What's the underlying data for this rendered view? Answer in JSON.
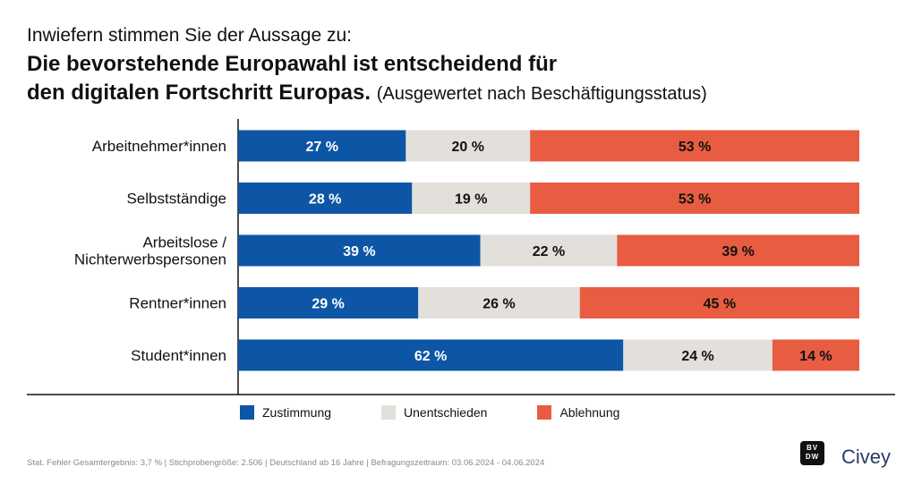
{
  "question": {
    "pre": "Inwiefern stimmen Sie der Aussage zu:",
    "title": "Die bevorstehende Europawahl ist entscheidend für den digitalen Fortschritt Europas.",
    "subtitle": "(Ausgewertet nach Beschäftigungsstatus)"
  },
  "colors": {
    "zustimmung": "#0d56a6",
    "unentschieden": "#e3dfdb",
    "ablehnung": "#e85d42"
  },
  "chart_data": {
    "type": "bar",
    "orientation": "horizontal",
    "stacked": true,
    "categories": [
      [
        "Arbeitnehmer*innen"
      ],
      [
        "Selbstständige"
      ],
      [
        "Arbeitslose /",
        "Nichterwerbspersonen"
      ],
      [
        "Rentner*innen"
      ],
      [
        "Student*innen"
      ]
    ],
    "series": [
      {
        "name": "Zustimmung",
        "values": [
          27,
          28,
          39,
          29,
          62
        ],
        "labels": [
          "27 %",
          "28 %",
          "39 %",
          "29 %",
          "62 %"
        ]
      },
      {
        "name": "Unentschieden",
        "values": [
          20,
          19,
          22,
          26,
          24
        ],
        "labels": [
          "20 %",
          "19 %",
          "22 %",
          "26 %",
          "24 %"
        ]
      },
      {
        "name": "Ablehnung",
        "values": [
          53,
          53,
          39,
          45,
          14
        ],
        "labels": [
          "53 %",
          "53 %",
          "39 %",
          "45 %",
          "14 %"
        ]
      }
    ],
    "xlim": [
      0,
      100
    ],
    "legend_position": "bottom"
  },
  "legend": [
    {
      "label": "Zustimmung",
      "color": "#0d56a6"
    },
    {
      "label": "Unentschieden",
      "color": "#e3dfdb"
    },
    {
      "label": "Ablehnung",
      "color": "#e85d42"
    }
  ],
  "footer": {
    "note": "Stat. Fehler Gesamtergebnis: 3,7 % | Stichprobengröße: 2.506 | Deutschland ab 16 Jahre | Befragungszeitraum: 03.06.2024 - 04.06.2024",
    "logo_bvdw": "BVDW",
    "logo_civey": "Civey"
  }
}
